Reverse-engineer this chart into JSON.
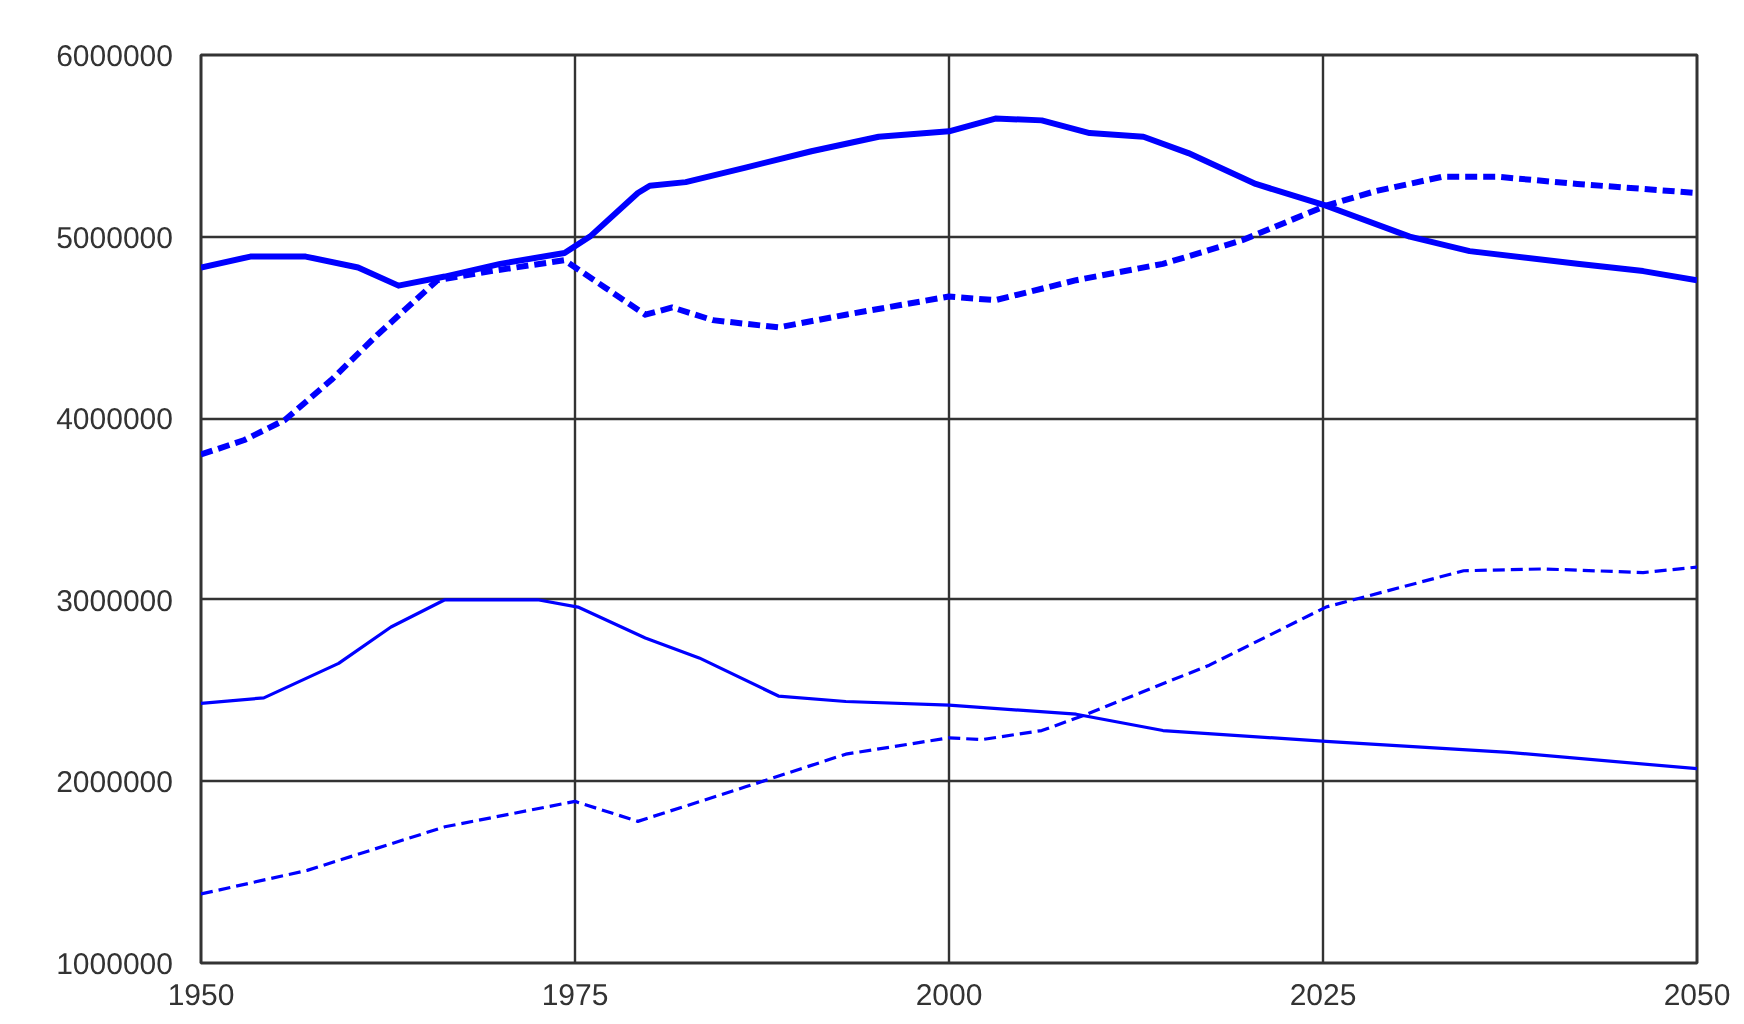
{
  "chart_data": {
    "type": "line",
    "xlim": [
      1950,
      2050
    ],
    "xticks": [
      1950,
      1975,
      2000,
      2025,
      2050
    ],
    "ylim": [
      1000000,
      6000000
    ],
    "yticks": [
      1000000,
      2000000,
      3000000,
      4000000,
      5000000,
      6000000
    ],
    "grid": true,
    "series": [
      {
        "color": "#0000ff",
        "line_style": "solid",
        "x": [
          1950,
          1953.3,
          1957,
          1960.5,
          1963.2,
          1966.3,
          1970,
          1974.3,
          1976,
          1979.2,
          1980,
          1982.4,
          1986.4,
          1990.8,
          1995.3,
          2000,
          2003.1,
          2006.2,
          2009.4,
          2013,
          2016,
          2020.5,
          2025.2,
          2030.8,
          2034.8,
          2042,
          2046.4,
          2050
        ],
        "values": [
          4830000,
          4890000,
          4890000,
          4830000,
          4730000,
          4780000,
          4850000,
          4910000,
          5000000,
          5240000,
          5280000,
          5300000,
          5380000,
          5470000,
          5550000,
          5580000,
          5650000,
          5640000,
          5570000,
          5550000,
          5460000,
          5290000,
          5170000,
          5000000,
          4920000,
          4850000,
          4810000,
          4760000
        ]
      },
      {
        "color": "#0000ff",
        "line_style": "dashed",
        "x": [
          1950,
          1952.9,
          1955.6,
          1958.7,
          1961.8,
          1965.8,
          1969.4,
          1974.3,
          1977,
          1979.7,
          1981.5,
          1984.2,
          1988.6,
          1993.1,
          2000,
          2003.1,
          2008.5,
          2014.3,
          2019.6,
          2025.2,
          2028.5,
          2033,
          2036.6,
          2042,
          2050
        ],
        "values": [
          3800000,
          3880000,
          3990000,
          4210000,
          4460000,
          4760000,
          4810000,
          4870000,
          4720000,
          4570000,
          4610000,
          4540000,
          4500000,
          4570000,
          4670000,
          4650000,
          4760000,
          4850000,
          4980000,
          5170000,
          5250000,
          5330000,
          5330000,
          5290000,
          5240000
        ]
      },
      {
        "color": "#0000ff",
        "line_style": "solid",
        "x": [
          1950,
          1954.2,
          1959.2,
          1962.7,
          1966.3,
          1972.5,
          1975.2,
          1979.7,
          1983.3,
          1988.6,
          1993.1,
          2000,
          2008.5,
          2014.3,
          2025.2,
          2037.4,
          2050
        ],
        "values": [
          2430000,
          2460000,
          2650000,
          2850000,
          3000000,
          3000000,
          2960000,
          2790000,
          2680000,
          2470000,
          2440000,
          2420000,
          2370000,
          2280000,
          2220000,
          2160000,
          2070000
        ]
      },
      {
        "color": "#0000ff",
        "line_style": "dashed",
        "x": [
          1950,
          1957.1,
          1966.3,
          1975,
          1979.2,
          1986.4,
          1993.1,
          2000,
          2002.2,
          2006.2,
          2008.9,
          2017.4,
          2025.2,
          2034.4,
          2039.7,
          2046.4,
          2050
        ],
        "values": [
          1380000,
          1510000,
          1750000,
          1890000,
          1780000,
          1970000,
          2150000,
          2240000,
          2230000,
          2280000,
          2360000,
          2640000,
          2960000,
          3160000,
          3170000,
          3150000,
          3180000
        ]
      }
    ]
  }
}
